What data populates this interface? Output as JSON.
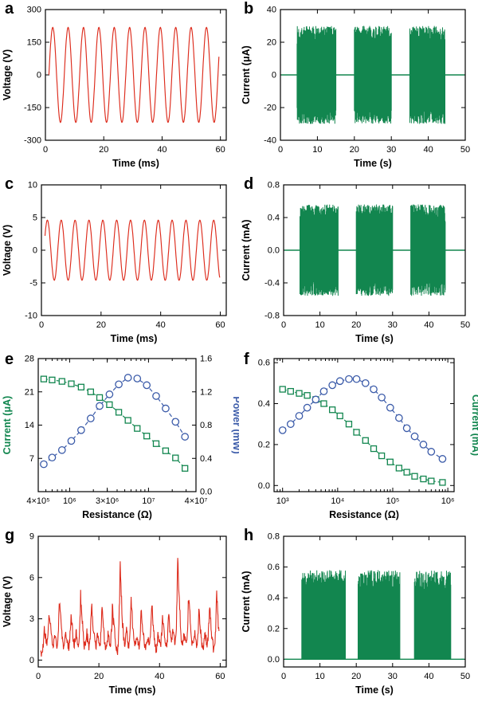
{
  "colors": {
    "red": "#dd2b1c",
    "green": "#12864f",
    "blue": "#3b5ba9",
    "axis": "#000000",
    "background": "#ffffff"
  },
  "chart_data": [
    {
      "letter": "a",
      "type": "line",
      "xlabel": "Time (ms)",
      "ylabel": "Voltage (V)",
      "xscale": "linear",
      "xlim": [
        0,
        62
      ],
      "ylim": [
        -300,
        300
      ],
      "xticks": [
        0,
        20,
        40,
        60
      ],
      "xticklabels": [
        "0",
        "20",
        "40",
        "60"
      ],
      "yticks": [
        -300,
        -150,
        0,
        150,
        300
      ],
      "yticklabels": [
        "-300",
        "-150",
        "0",
        "150",
        "300"
      ],
      "margins": {
        "l": 57,
        "r": 16,
        "t": 12,
        "b": 44
      },
      "series": [
        {
          "kind": "sine",
          "color": "red",
          "amplitude": 218,
          "period": 5.27,
          "phase": 0,
          "t0": 1.2,
          "t1": 59.5
        }
      ]
    },
    {
      "letter": "b",
      "type": "line",
      "xlabel": "Time (s)",
      "ylabel": "Current (μA)",
      "xscale": "linear",
      "xlim": [
        0,
        50
      ],
      "ylim": [
        -40,
        40
      ],
      "xticks": [
        0,
        10,
        20,
        30,
        40,
        50
      ],
      "xticklabels": [
        "0",
        "10",
        "20",
        "30",
        "40",
        "50"
      ],
      "yticks": [
        -40,
        -20,
        0,
        20,
        40
      ],
      "yticklabels": [
        "-40",
        "-20",
        "0",
        "20",
        "40"
      ],
      "margins": {
        "l": 52,
        "r": 16,
        "t": 12,
        "b": 44
      },
      "series": [
        {
          "kind": "bursts",
          "color": "green",
          "amp": 30,
          "sides": "both",
          "baseline": 0,
          "seed": 7,
          "bursts": [
            [
              4.5,
              15
            ],
            [
              20,
              30
            ],
            [
              35,
              44.5
            ]
          ]
        }
      ]
    },
    {
      "letter": "c",
      "type": "line",
      "xlabel": "Time (ms)",
      "ylabel": "Voltage (V)",
      "xscale": "linear",
      "xlim": [
        0,
        62
      ],
      "ylim": [
        -10,
        10
      ],
      "xticks": [
        0,
        20,
        40,
        60
      ],
      "xticklabels": [
        "0",
        "20",
        "40",
        "60"
      ],
      "yticks": [
        -10,
        -5,
        0,
        5,
        10
      ],
      "yticklabels": [
        "-10",
        "-5",
        "0",
        "5",
        "10"
      ],
      "margins": {
        "l": 52,
        "r": 16,
        "t": 12,
        "b": 44
      },
      "series": [
        {
          "kind": "sine",
          "color": "red",
          "amplitude": 4.6,
          "period": 4.65,
          "phase": 0.5,
          "t0": 1.2,
          "t1": 59.8
        }
      ]
    },
    {
      "letter": "d",
      "type": "line",
      "xlabel": "Time (s)",
      "ylabel": "Current (mA)",
      "xscale": "linear",
      "xlim": [
        0,
        50
      ],
      "ylim": [
        -0.8,
        0.8
      ],
      "xticks": [
        0,
        10,
        20,
        30,
        40,
        50
      ],
      "xticklabels": [
        "0",
        "10",
        "20",
        "30",
        "40",
        "50"
      ],
      "yticks": [
        -0.8,
        -0.4,
        0,
        0.4,
        0.8
      ],
      "yticklabels": [
        "-0.8",
        "-0.4",
        "0.0",
        "0.4",
        "0.8"
      ],
      "margins": {
        "l": 56,
        "r": 16,
        "t": 12,
        "b": 44
      },
      "series": [
        {
          "kind": "bursts",
          "color": "green",
          "amp": 0.56,
          "sides": "both",
          "baseline": 0,
          "seed": 9,
          "bursts": [
            [
              4.5,
              15
            ],
            [
              20,
              30
            ],
            [
              35,
              44.5
            ]
          ]
        }
      ]
    },
    {
      "letter": "e",
      "type": "scatter",
      "xlabel": "Resistance (Ω)",
      "ylabel": "Current (μA)",
      "ylabel_color": "green",
      "y2label": "Power (mW)",
      "y2label_color": "blue",
      "xscale": "log",
      "xlim": [
        400000,
        40000000
      ],
      "ylim": [
        0,
        28
      ],
      "y2lim": [
        0,
        1.6
      ],
      "xticks": [
        400000,
        1000000,
        3000000,
        10000000,
        40000000
      ],
      "xticklabels": [
        "4×10⁵",
        "10⁶",
        "3×10⁶",
        "10⁷",
        "4×10⁷"
      ],
      "yticks": [
        7,
        14,
        21,
        28
      ],
      "yticklabels": [
        "7",
        "14",
        "21",
        "28"
      ],
      "y2ticks": [
        0,
        0.4,
        0.8,
        1.2,
        1.6
      ],
      "y2ticklabels": [
        "0.0",
        "0.4",
        "0.8",
        "1.2",
        "1.6"
      ],
      "margins": {
        "l": 48,
        "r": 54,
        "t": 10,
        "b": 44
      },
      "series": [
        {
          "kind": "scatterline",
          "color": "green",
          "marker": "square",
          "yaxis": "y1",
          "x": [
            470000,
            600000,
            800000,
            1050000,
            1400000,
            1850000,
            2400000,
            3200000,
            4200000,
            5500000,
            7200000,
            9500000,
            12500000,
            16500000,
            22000000,
            29000000
          ],
          "y": [
            23.7,
            23.5,
            23.2,
            22.7,
            22.0,
            21.0,
            19.8,
            18.3,
            16.7,
            15.0,
            13.3,
            11.7,
            10.1,
            8.6,
            7.1,
            4.9
          ]
        },
        {
          "kind": "scatterline",
          "color": "blue",
          "marker": "circle",
          "yaxis": "y2",
          "x": [
            470000,
            600000,
            800000,
            1050000,
            1400000,
            1850000,
            2400000,
            3200000,
            4200000,
            5500000,
            7200000,
            9500000,
            12500000,
            16500000,
            22000000,
            29000000
          ],
          "y": [
            0.33,
            0.41,
            0.5,
            0.61,
            0.74,
            0.88,
            1.03,
            1.17,
            1.29,
            1.37,
            1.36,
            1.28,
            1.15,
            1.0,
            0.84,
            0.66
          ]
        }
      ]
    },
    {
      "letter": "f",
      "type": "scatter",
      "xlabel": "Resistance (Ω)",
      "y2label": "Current (mA)",
      "y2label_color": "green",
      "xscale": "log",
      "xlim": [
        700,
        1300000
      ],
      "ylim": [
        -0.03,
        0.62
      ],
      "xticks": [
        1000,
        10000,
        100000,
        1000000
      ],
      "xticklabels": [
        "10³",
        "10⁴",
        "10⁵",
        "10⁶"
      ],
      "yticks": [
        0,
        0.2,
        0.4,
        0.6
      ],
      "yticklabels": [
        "0.0",
        "0.2",
        "0.4",
        "0.6"
      ],
      "margins": {
        "l": 44,
        "r": 30,
        "t": 10,
        "b": 44
      },
      "series": [
        {
          "kind": "scatterline",
          "color": "green",
          "marker": "square",
          "yaxis": "y1",
          "x": [
            1000,
            1400,
            2000,
            2800,
            4000,
            5600,
            8000,
            11000,
            16000,
            22000,
            32000,
            45000,
            63000,
            90000,
            130000,
            180000,
            250000,
            360000,
            500000,
            800000
          ],
          "y": [
            0.47,
            0.46,
            0.45,
            0.44,
            0.42,
            0.4,
            0.37,
            0.34,
            0.3,
            0.26,
            0.22,
            0.18,
            0.145,
            0.115,
            0.085,
            0.065,
            0.045,
            0.032,
            0.022,
            0.015
          ]
        },
        {
          "kind": "scatterline",
          "color": "blue",
          "marker": "circle",
          "yaxis": "y1",
          "x": [
            1000,
            1400,
            2000,
            2800,
            4000,
            5600,
            8000,
            11000,
            16000,
            22000,
            32000,
            45000,
            63000,
            90000,
            130000,
            180000,
            250000,
            360000,
            500000,
            800000
          ],
          "y": [
            0.27,
            0.3,
            0.34,
            0.38,
            0.42,
            0.46,
            0.49,
            0.51,
            0.52,
            0.52,
            0.5,
            0.47,
            0.43,
            0.38,
            0.33,
            0.28,
            0.24,
            0.2,
            0.165,
            0.13
          ]
        }
      ]
    },
    {
      "letter": "g",
      "type": "line",
      "xlabel": "Time (ms)",
      "ylabel": "Voltage (V)",
      "xscale": "linear",
      "xlim": [
        0,
        62
      ],
      "ylim": [
        -0.5,
        9
      ],
      "xticks": [
        0,
        20,
        40,
        60
      ],
      "xticklabels": [
        "0",
        "20",
        "40",
        "60"
      ],
      "yticks": [
        0,
        3,
        6,
        9
      ],
      "yticklabels": [
        "0",
        "3",
        "6",
        "9"
      ],
      "margins": {
        "l": 48,
        "r": 16,
        "t": 12,
        "b": 44
      },
      "series": [
        {
          "kind": "spiky",
          "color": "red",
          "seed": 5,
          "t0": 0.8,
          "t1": 59.6,
          "peaks": [
            [
              2,
              2.0
            ],
            [
              3.6,
              3.2
            ],
            [
              5.5,
              1.5
            ],
            [
              7,
              4.3
            ],
            [
              9,
              1.8
            ],
            [
              10.8,
              3.0
            ],
            [
              12.5,
              1.6
            ],
            [
              14,
              4.4
            ],
            [
              16,
              1.5
            ],
            [
              17.6,
              3.9
            ],
            [
              19.5,
              1.4
            ],
            [
              21,
              3.3
            ],
            [
              23,
              1.6
            ],
            [
              24.5,
              3.6
            ],
            [
              27,
              6.9
            ],
            [
              29,
              1.8
            ],
            [
              30.6,
              3.9
            ],
            [
              32.5,
              1.5
            ],
            [
              34,
              3.2
            ],
            [
              36,
              1.4
            ],
            [
              37.4,
              3.7
            ],
            [
              39.5,
              1.5
            ],
            [
              41,
              2.8
            ],
            [
              43,
              3.1
            ],
            [
              44.5,
              1.6
            ],
            [
              46,
              7.0
            ],
            [
              48,
              1.6
            ],
            [
              49.6,
              4.4
            ],
            [
              51.5,
              1.5
            ],
            [
              53,
              3.3
            ],
            [
              55,
              1.6
            ],
            [
              56.5,
              3.5
            ],
            [
              58.8,
              4.4
            ]
          ]
        }
      ]
    },
    {
      "letter": "h",
      "type": "line",
      "xlabel": "Time (s)",
      "ylabel": "Current (mA)",
      "xscale": "linear",
      "xlim": [
        0,
        50
      ],
      "ylim": [
        -0.05,
        0.8
      ],
      "xticks": [
        0,
        10,
        20,
        30,
        40,
        50
      ],
      "xticklabels": [
        "0",
        "10",
        "20",
        "30",
        "40",
        "50"
      ],
      "yticks": [
        0,
        0.2,
        0.4,
        0.6,
        0.8
      ],
      "yticklabels": [
        "0.0",
        "0.2",
        "0.4",
        "0.6",
        "0.8"
      ],
      "margins": {
        "l": 56,
        "r": 16,
        "t": 12,
        "b": 44
      },
      "series": [
        {
          "kind": "bursts",
          "color": "green",
          "amp": 0.58,
          "sides": "pos",
          "baseline": 0,
          "seed": 11,
          "bursts": [
            [
              5,
              17
            ],
            [
              20.5,
              32
            ],
            [
              36,
              46
            ]
          ]
        }
      ]
    }
  ]
}
